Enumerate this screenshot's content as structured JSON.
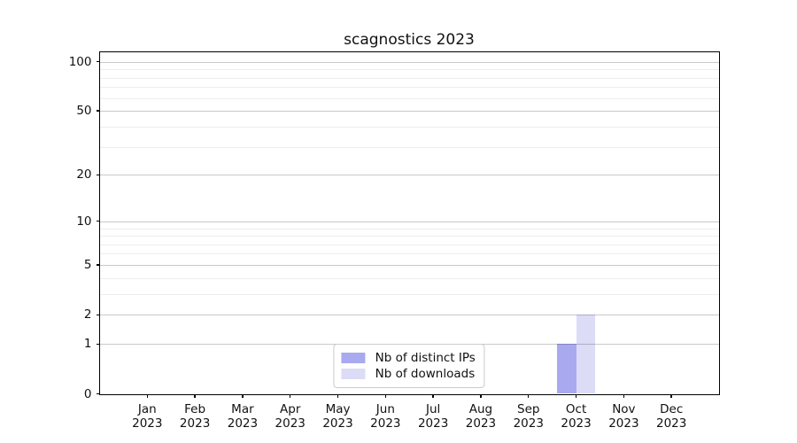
{
  "chart_data": {
    "type": "bar",
    "title": "scagnostics 2023",
    "categories": [
      "Jan",
      "Feb",
      "Mar",
      "Apr",
      "May",
      "Jun",
      "Jul",
      "Aug",
      "Sep",
      "Oct",
      "Nov",
      "Dec"
    ],
    "year_label": "2023",
    "series": [
      {
        "name": "Nb of distinct IPs",
        "color": "#a9a9f0",
        "values": [
          0,
          0,
          0,
          0,
          0,
          0,
          0,
          0,
          0,
          1,
          0,
          0
        ]
      },
      {
        "name": "Nb of downloads",
        "color": "#dcdcf7",
        "values": [
          0,
          0,
          0,
          0,
          0,
          0,
          0,
          0,
          0,
          2,
          0,
          0
        ]
      }
    ],
    "xlabel": "",
    "ylabel": "",
    "yscale": "log1p",
    "y_major_ticks": [
      0,
      1,
      2,
      5,
      10,
      20,
      50,
      100
    ],
    "y_minor_ticks": [
      3,
      4,
      6,
      7,
      8,
      9,
      30,
      40,
      60,
      70,
      80,
      90
    ],
    "ylim": [
      0,
      115
    ],
    "grid": "on",
    "legend_position": "lower center inside"
  },
  "colors": {
    "spine": "#000000",
    "text": "#111111",
    "legend_border": "#cccccc"
  }
}
